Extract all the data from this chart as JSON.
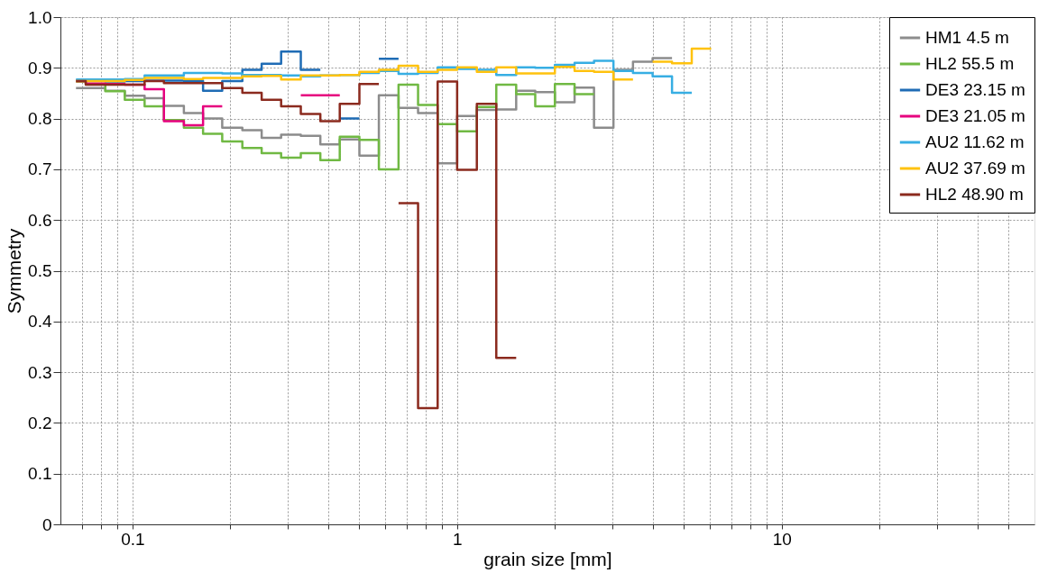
{
  "chart_data": {
    "type": "step",
    "xlabel": "grain size  [mm]",
    "ylabel": "Symmetry",
    "log": "x",
    "grid": true,
    "legend": "top right",
    "line_style": "solid",
    "marker": "none",
    "xlim": [
      0.06,
      60
    ],
    "ylim": [
      0,
      1
    ],
    "xticks": [
      {
        "value": 0.07,
        "label": null
      },
      {
        "value": 0.08,
        "label": null
      },
      {
        "value": 0.09,
        "label": null
      },
      0.1,
      {
        "value": 0.2,
        "label": null
      },
      {
        "value": 0.3,
        "label": null
      },
      {
        "value": 0.4,
        "label": null
      },
      {
        "value": 0.5,
        "label": null
      },
      {
        "value": 0.6,
        "label": null
      },
      {
        "value": 0.7,
        "label": null
      },
      {
        "value": 0.8,
        "label": null
      },
      {
        "value": 0.9,
        "label": null
      },
      1,
      {
        "value": 2,
        "label": null
      },
      {
        "value": 3,
        "label": null
      },
      {
        "value": 4,
        "label": null
      },
      {
        "value": 5,
        "label": null
      },
      {
        "value": 6,
        "label": null
      },
      {
        "value": 7,
        "label": null
      },
      {
        "value": 8,
        "label": null
      },
      {
        "value": 9,
        "label": null
      },
      10,
      {
        "value": 20,
        "label": null
      },
      {
        "value": 30,
        "label": null
      },
      {
        "value": 40,
        "label": null
      },
      {
        "value": 50,
        "label": null
      }
    ],
    "yticks": [
      0,
      0.1,
      0.2,
      0.3,
      0.4,
      0.5,
      0.6,
      0.7,
      0.8,
      0.9,
      {
        "value": 1,
        "label": "1.0"
      }
    ],
    "series": [
      {
        "name": "HM1 4.5 m",
        "color": "#8c8c8c",
        "x": [
          0.067,
          0.0718,
          0.0825,
          0.0947,
          0.109,
          0.125,
          0.144,
          0.165,
          0.189,
          0.218,
          0.25,
          0.287,
          0.33,
          0.379,
          0.435,
          0.5,
          0.574,
          0.66,
          0.758,
          0.871,
          1,
          1.15,
          1.32,
          1.52,
          1.74,
          2,
          2.3,
          2.64,
          3.03,
          3.48,
          4,
          4.59
        ],
        "values": [
          0.86,
          0.86,
          0.855,
          0.845,
          0.84,
          0.825,
          0.811,
          0.8,
          0.782,
          0.777,
          0.762,
          0.768,
          0.766,
          0.749,
          0.759,
          0.727,
          0.846,
          0.821,
          0.811,
          0.712,
          0.805,
          0.817,
          0.818,
          0.855,
          0.852,
          0.832,
          0.861,
          0.782,
          0.896,
          0.912,
          0.919,
          0.919
        ]
      },
      {
        "name": "HL2 55.5 m",
        "color": "#70b943",
        "x": [
          0.067,
          0.0718,
          0.0825,
          0.0947,
          0.109,
          0.125,
          0.144,
          0.165,
          0.189,
          0.218,
          0.25,
          0.287,
          0.33,
          0.379,
          0.435,
          0.5,
          0.574,
          0.66,
          0.758,
          0.871,
          1,
          1.15,
          1.32,
          1.52,
          1.74,
          2,
          2.3,
          2.64
        ],
        "values": [
          0.873,
          0.868,
          0.854,
          0.837,
          0.824,
          0.797,
          0.782,
          0.77,
          0.755,
          0.742,
          0.732,
          0.723,
          0.732,
          0.718,
          0.764,
          0.758,
          0.7,
          0.867,
          0.827,
          0.789,
          0.775,
          0.823,
          0.867,
          0.848,
          0.824,
          0.868,
          0.848,
          0.848
        ]
      },
      {
        "name": "DE3 23.15 m",
        "color": "#1f6cb5",
        "x": [
          0.067,
          0.0718,
          0.0825,
          0.0947,
          0.109,
          0.125,
          0.144,
          0.165,
          0.189,
          0.218,
          0.25,
          0.287,
          0.33,
          0.379,
          null,
          0.435,
          0.5,
          null,
          0.574,
          0.66
        ],
        "values": [
          0.875,
          0.874,
          0.873,
          0.874,
          0.875,
          0.875,
          0.874,
          0.855,
          0.874,
          0.896,
          0.908,
          0.932,
          0.896,
          0.896,
          null,
          0.8,
          0.8,
          null,
          0.918,
          0.918
        ]
      },
      {
        "name": "DE3 21.05 m",
        "color": "#e6007e",
        "x": [
          0.067,
          0.0718,
          0.0825,
          0.0947,
          0.109,
          0.125,
          0.144,
          0.165,
          0.189,
          null,
          0.33,
          0.435
        ],
        "values": [
          0.874,
          0.869,
          0.868,
          0.867,
          0.858,
          0.795,
          0.787,
          0.824,
          0.824,
          null,
          0.846,
          0.846
        ]
      },
      {
        "name": "AU2 11.62 m",
        "color": "#37aee3",
        "x": [
          0.067,
          0.0718,
          0.0825,
          0.0947,
          0.109,
          0.125,
          0.144,
          0.165,
          0.189,
          0.218,
          0.25,
          0.287,
          0.33,
          0.379,
          0.435,
          0.5,
          0.574,
          0.66,
          0.758,
          0.871,
          1,
          1.15,
          1.32,
          1.52,
          1.74,
          2,
          2.3,
          2.64,
          3.03,
          3.48,
          4,
          4.59,
          5.28
        ],
        "values": [
          0.877,
          0.877,
          0.877,
          0.878,
          0.885,
          0.885,
          0.89,
          0.89,
          0.889,
          0.886,
          0.886,
          0.885,
          0.883,
          0.885,
          0.886,
          0.89,
          0.894,
          0.888,
          0.89,
          0.901,
          0.898,
          0.896,
          0.886,
          0.901,
          0.9,
          0.906,
          0.91,
          0.914,
          0.894,
          0.89,
          0.883,
          0.851,
          0.851
        ]
      },
      {
        "name": "AU2 37.69 m",
        "color": "#ffc20e",
        "x": [
          0.067,
          0.0718,
          0.0825,
          0.0947,
          0.109,
          0.125,
          0.144,
          0.165,
          0.189,
          0.218,
          0.25,
          0.287,
          0.33,
          0.379,
          0.435,
          0.5,
          0.574,
          0.66,
          0.758,
          0.871,
          1,
          1.15,
          1.32,
          1.52,
          1.74,
          2,
          2.3,
          2.64,
          3.03,
          3.48,
          null,
          4,
          4.59,
          5.28,
          6.06
        ],
        "values": [
          0.874,
          0.874,
          0.874,
          0.876,
          0.88,
          0.88,
          0.878,
          0.88,
          0.88,
          0.883,
          0.884,
          0.877,
          0.885,
          0.885,
          0.886,
          0.892,
          0.896,
          0.904,
          0.892,
          0.896,
          0.901,
          0.892,
          0.901,
          0.889,
          0.889,
          0.902,
          0.894,
          0.892,
          0.877,
          0.877,
          null,
          0.912,
          0.909,
          0.938,
          0.938
        ]
      },
      {
        "name": "HL2 48.90 m",
        "color": "#8b2a1e",
        "x": [
          0.067,
          0.0718,
          0.0825,
          0.0947,
          0.109,
          0.125,
          0.144,
          0.165,
          0.189,
          0.218,
          0.25,
          0.287,
          0.33,
          0.379,
          0.435,
          0.5,
          0.574,
          null,
          0.66,
          0.758,
          0.871,
          1,
          1.15,
          1.32,
          1.52
        ],
        "values": [
          0.874,
          0.867,
          0.867,
          0.867,
          0.874,
          0.87,
          0.87,
          0.87,
          0.86,
          0.851,
          0.837,
          0.824,
          0.809,
          0.795,
          0.829,
          0.868,
          0.868,
          null,
          0.633,
          0.229,
          0.873,
          0.699,
          0.829,
          0.328,
          0.328
        ]
      }
    ]
  }
}
